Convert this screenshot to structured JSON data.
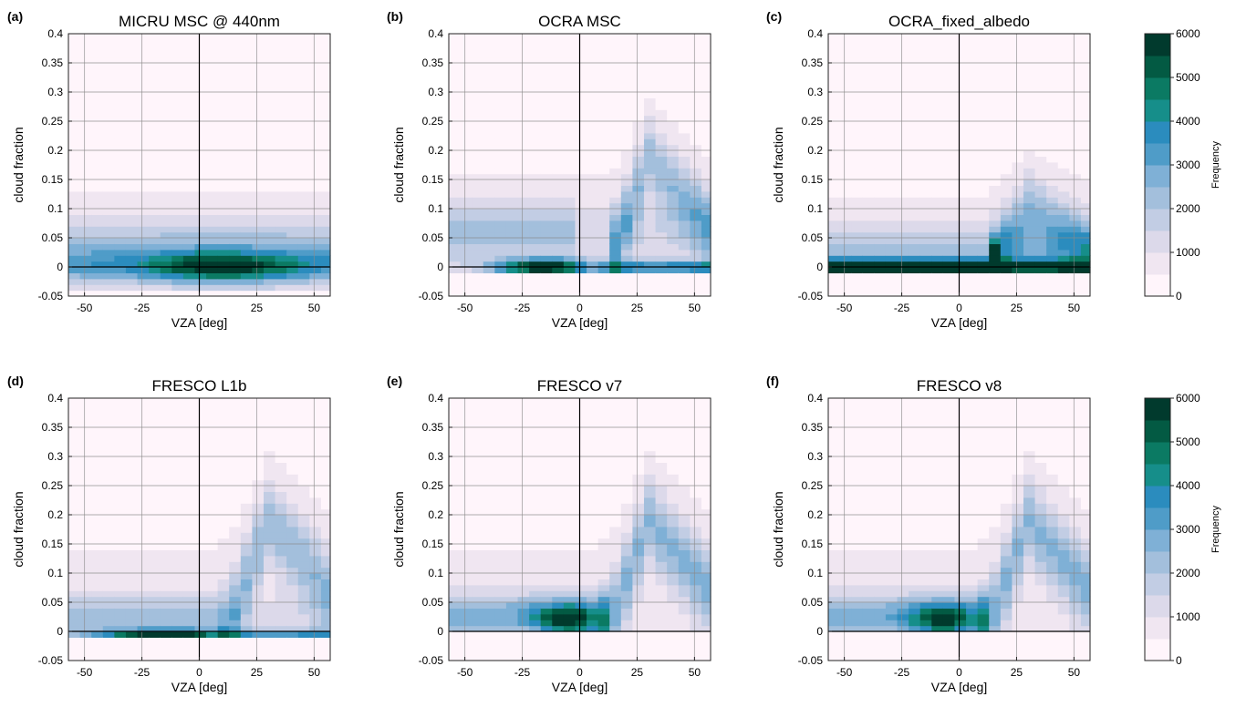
{
  "figure": {
    "colormap": [
      "#fff5fb",
      "#f0e6f1",
      "#dcd9ea",
      "#c2cde4",
      "#a3bfdc",
      "#7fb0d6",
      "#4f9cc8",
      "#2b8cbe",
      "#168e8a",
      "#0b7a63",
      "#035a43",
      "#013a2d"
    ],
    "colorbars": [
      {
        "label": "Frequency",
        "ticks": [
          0,
          1000,
          2000,
          3000,
          4000,
          5000,
          6000
        ],
        "range": [
          0,
          6000
        ]
      },
      {
        "label": "Frequency",
        "ticks": [
          0,
          1000,
          2000,
          3000,
          4000,
          5000,
          6000
        ],
        "range": [
          0,
          6000
        ]
      }
    ]
  },
  "chart_data": [
    {
      "type": "heatmap",
      "panel": "(a)",
      "title": "MICRU MSC @ 440nm",
      "xlabel": "VZA [deg]",
      "ylabel": "cloud fraction",
      "xlim": [
        -57,
        57
      ],
      "ylim": [
        -0.05,
        0.4
      ],
      "xticks": [
        -50,
        -25,
        0,
        25,
        50
      ],
      "xtick_labels": [
        "-50",
        "-25",
        "0",
        "25",
        "50"
      ],
      "yticks": [
        -0.05,
        0,
        0.05,
        0.1,
        0.15,
        0.2,
        0.25,
        0.3,
        0.35,
        0.4
      ],
      "ytick_labels": [
        "-0.05",
        "0",
        "0.05",
        "0.1",
        "0.15",
        "0.2",
        "0.25",
        "0.3",
        "0.35",
        "0.4"
      ],
      "grid": true,
      "colorbar_range": [
        0,
        6000
      ]
    },
    {
      "type": "heatmap",
      "panel": "(b)",
      "title": "OCRA MSC",
      "xlabel": "VZA [deg]",
      "ylabel": "cloud fraction",
      "xlim": [
        -57,
        57
      ],
      "ylim": [
        -0.05,
        0.4
      ],
      "xticks": [
        -50,
        -25,
        0,
        25,
        50
      ],
      "xtick_labels": [
        "-50",
        "-25",
        "0",
        "25",
        "50"
      ],
      "yticks": [
        -0.05,
        0,
        0.05,
        0.1,
        0.15,
        0.2,
        0.25,
        0.3,
        0.35,
        0.4
      ],
      "ytick_labels": [
        "-0.05",
        "0",
        "0.05",
        "0.1",
        "0.15",
        "0.2",
        "0.25",
        "0.3",
        "0.35",
        "0.4"
      ],
      "grid": true,
      "colorbar_range": [
        0,
        6000
      ]
    },
    {
      "type": "heatmap",
      "panel": "(c)",
      "title": "OCRA_fixed_albedo",
      "xlabel": "VZA [deg]",
      "ylabel": "cloud fraction",
      "xlim": [
        -57,
        57
      ],
      "ylim": [
        -0.05,
        0.4
      ],
      "xticks": [
        -50,
        -25,
        0,
        25,
        50
      ],
      "xtick_labels": [
        "-50",
        "-25",
        "0",
        "25",
        "50"
      ],
      "yticks": [
        -0.05,
        0,
        0.05,
        0.1,
        0.15,
        0.2,
        0.25,
        0.3,
        0.35,
        0.4
      ],
      "ytick_labels": [
        "-0.05",
        "0",
        "0.05",
        "0.1",
        "0.15",
        "0.2",
        "0.25",
        "0.3",
        "0.35",
        "0.4"
      ],
      "grid": true,
      "colorbar_range": [
        0,
        6000
      ]
    },
    {
      "type": "heatmap",
      "panel": "(d)",
      "title": "FRESCO L1b",
      "xlabel": "VZA [deg]",
      "ylabel": "cloud fraction",
      "xlim": [
        -57,
        57
      ],
      "ylim": [
        -0.05,
        0.4
      ],
      "xticks": [
        -50,
        -25,
        0,
        25,
        50
      ],
      "xtick_labels": [
        "-50",
        "-25",
        "0",
        "25",
        "50"
      ],
      "yticks": [
        -0.05,
        0,
        0.05,
        0.1,
        0.15,
        0.2,
        0.25,
        0.3,
        0.35,
        0.4
      ],
      "ytick_labels": [
        "-0.05",
        "0",
        "0.05",
        "0.1",
        "0.15",
        "0.2",
        "0.25",
        "0.3",
        "0.35",
        "0.4"
      ],
      "grid": true,
      "colorbar_range": [
        0,
        6000
      ]
    },
    {
      "type": "heatmap",
      "panel": "(e)",
      "title": "FRESCO v7",
      "xlabel": "VZA [deg]",
      "ylabel": "cloud fraction",
      "xlim": [
        -57,
        57
      ],
      "ylim": [
        -0.05,
        0.4
      ],
      "xticks": [
        -50,
        -25,
        0,
        25,
        50
      ],
      "xtick_labels": [
        "-50",
        "-25",
        "0",
        "25",
        "50"
      ],
      "yticks": [
        -0.05,
        0,
        0.05,
        0.1,
        0.15,
        0.2,
        0.25,
        0.3,
        0.35,
        0.4
      ],
      "ytick_labels": [
        "-0.05",
        "0",
        "0.05",
        "0.1",
        "0.15",
        "0.2",
        "0.25",
        "0.3",
        "0.35",
        "0.4"
      ],
      "grid": true,
      "colorbar_range": [
        0,
        6000
      ]
    },
    {
      "type": "heatmap",
      "panel": "(f)",
      "title": "FRESCO v8",
      "xlabel": "VZA [deg]",
      "ylabel": "cloud fraction",
      "xlim": [
        -57,
        57
      ],
      "ylim": [
        -0.05,
        0.4
      ],
      "xticks": [
        -50,
        -25,
        0,
        25,
        50
      ],
      "xtick_labels": [
        "-50",
        "-25",
        "0",
        "25",
        "50"
      ],
      "yticks": [
        -0.05,
        0,
        0.05,
        0.1,
        0.15,
        0.2,
        0.25,
        0.3,
        0.35,
        0.4
      ],
      "ytick_labels": [
        "-0.05",
        "0",
        "0.05",
        "0.1",
        "0.15",
        "0.2",
        "0.25",
        "0.3",
        "0.35",
        "0.4"
      ],
      "grid": true,
      "colorbar_range": [
        0,
        6000
      ]
    }
  ]
}
